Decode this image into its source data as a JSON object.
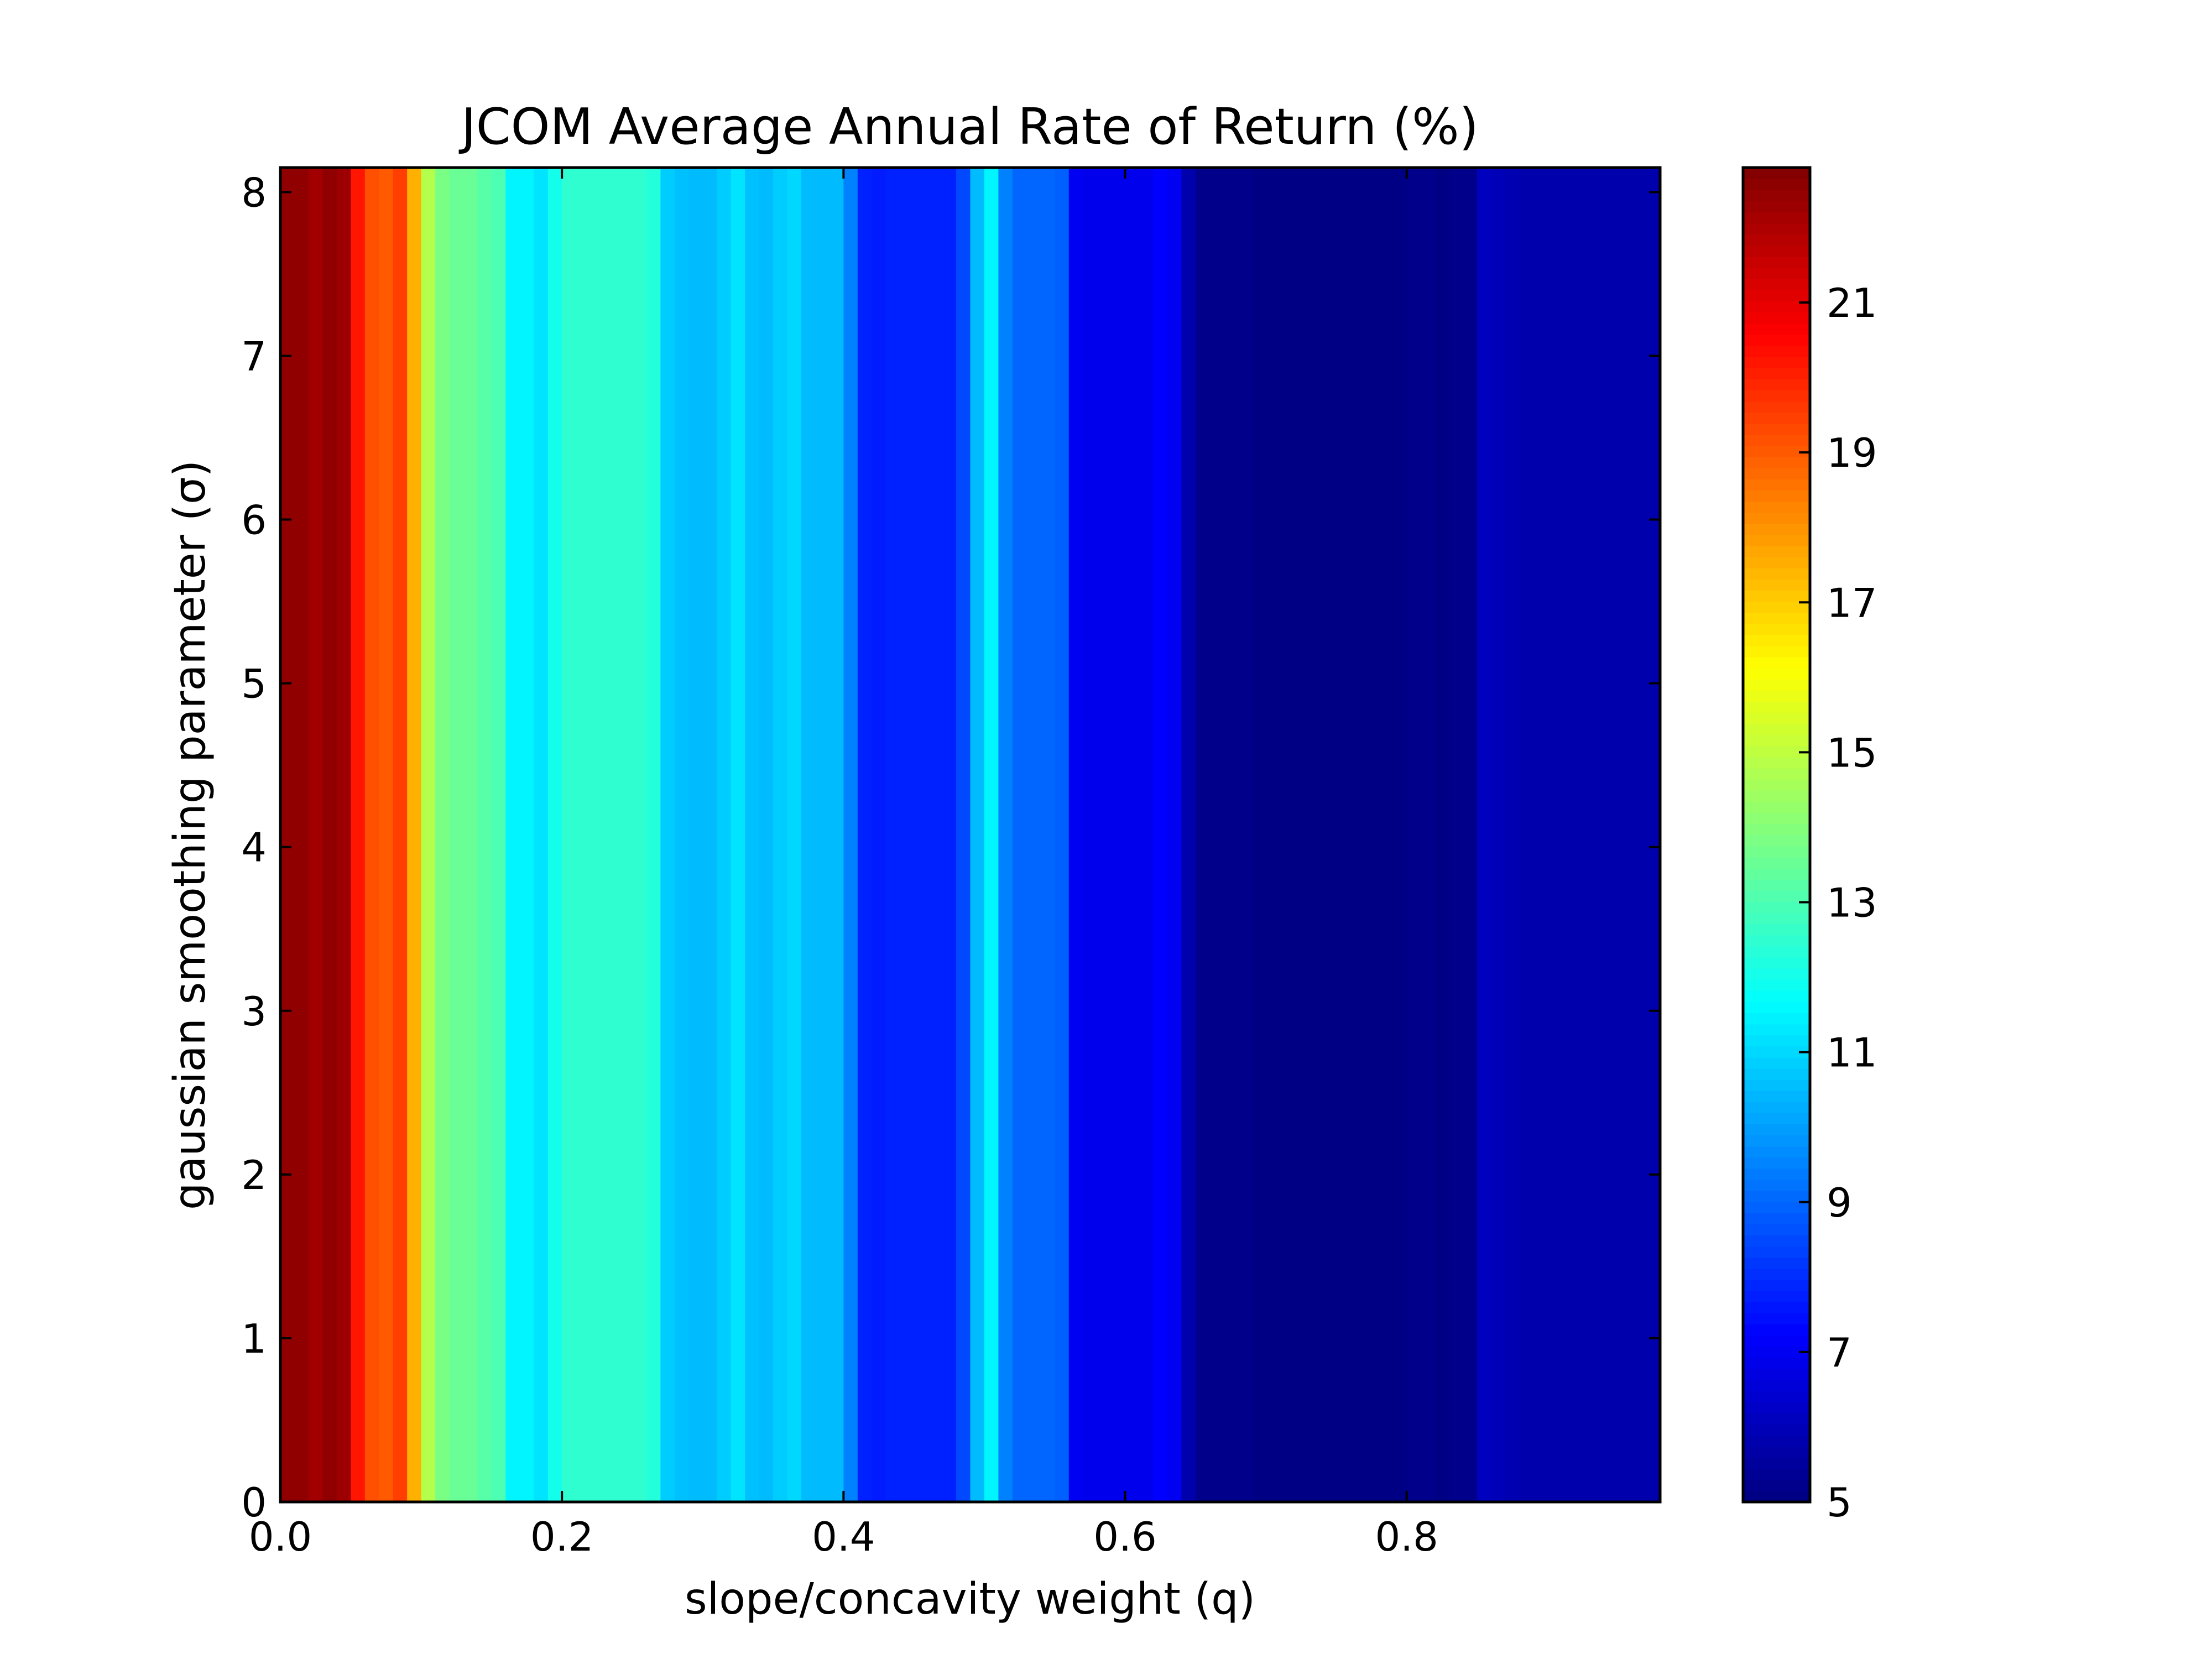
{
  "chart_data": {
    "type": "heatmap",
    "title": "JCOM Average Annual Rate of Return (%)",
    "xlabel": "slope/concavity weight (q)",
    "ylabel": "gaussian smoothing parameter (σ)",
    "xlim": [
      0.0,
      0.98
    ],
    "ylim": [
      0,
      8.15
    ],
    "x_ticks": [
      0.0,
      0.2,
      0.4,
      0.6,
      0.8
    ],
    "x_tick_labels": [
      "0.0",
      "0.2",
      "0.4",
      "0.6",
      "0.8"
    ],
    "y_ticks": [
      0,
      1,
      2,
      3,
      4,
      5,
      6,
      7,
      8
    ],
    "y_tick_labels": [
      "0",
      "1",
      "2",
      "3",
      "4",
      "5",
      "6",
      "7",
      "8"
    ],
    "colormap": "jet",
    "colorbar": {
      "range": [
        5,
        22.8
      ],
      "ticks": [
        5,
        7,
        9,
        11,
        13,
        15,
        17,
        19,
        21
      ],
      "tick_labels": [
        "5",
        "7",
        "9",
        "11",
        "13",
        "15",
        "17",
        "19",
        "21"
      ]
    },
    "note_variation": "values vary only with q; constant across sigma",
    "q_values": [
      0.0,
      0.01,
      0.02,
      0.03,
      0.04,
      0.05,
      0.06,
      0.07,
      0.08,
      0.09,
      0.1,
      0.11,
      0.12,
      0.13,
      0.14,
      0.15,
      0.16,
      0.17,
      0.18,
      0.19,
      0.2,
      0.21,
      0.22,
      0.23,
      0.24,
      0.25,
      0.26,
      0.27,
      0.28,
      0.29,
      0.3,
      0.31,
      0.32,
      0.33,
      0.34,
      0.35,
      0.36,
      0.37,
      0.38,
      0.39,
      0.4,
      0.41,
      0.42,
      0.43,
      0.44,
      0.45,
      0.46,
      0.47,
      0.48,
      0.49,
      0.5,
      0.51,
      0.52,
      0.53,
      0.54,
      0.55,
      0.56,
      0.57,
      0.58,
      0.59,
      0.6,
      0.61,
      0.62,
      0.63,
      0.64,
      0.65,
      0.66,
      0.67,
      0.68,
      0.69,
      0.7,
      0.71,
      0.72,
      0.73,
      0.74,
      0.75,
      0.76,
      0.77,
      0.78,
      0.79,
      0.8,
      0.81,
      0.82,
      0.83,
      0.84,
      0.85,
      0.86,
      0.87,
      0.88,
      0.89,
      0.9,
      0.91,
      0.92,
      0.93,
      0.94,
      0.95,
      0.96,
      0.97
    ],
    "return_values": [
      22.5,
      22.5,
      22.2,
      22.5,
      22.3,
      20.2,
      19.2,
      19.0,
      19.5,
      17.5,
      14.8,
      13.8,
      13.5,
      13.5,
      13.2,
      13.0,
      11.5,
      11.5,
      11.2,
      12.0,
      12.5,
      12.5,
      12.5,
      12.5,
      12.5,
      12.5,
      12.3,
      10.8,
      10.6,
      10.5,
      10.5,
      10.8,
      11.2,
      10.6,
      10.5,
      10.8,
      11.0,
      10.5,
      10.5,
      10.5,
      9.5,
      7.8,
      7.7,
      7.8,
      7.8,
      7.8,
      7.8,
      7.8,
      8.5,
      10.5,
      11.5,
      9.5,
      9.0,
      9.0,
      9.0,
      8.9,
      7.0,
      6.9,
      6.9,
      6.9,
      6.9,
      6.9,
      7.2,
      7.0,
      5.8,
      5.2,
      5.2,
      5.2,
      5.2,
      5.1,
      5.1,
      5.1,
      5.1,
      5.1,
      5.1,
      5.1,
      5.1,
      5.1,
      5.1,
      5.1,
      5.2,
      5.2,
      5.1,
      5.2,
      5.2,
      6.1,
      6.0,
      5.9,
      5.8,
      5.8,
      5.8,
      5.8,
      5.8,
      5.8,
      5.8,
      5.8,
      5.8,
      5.8
    ]
  }
}
